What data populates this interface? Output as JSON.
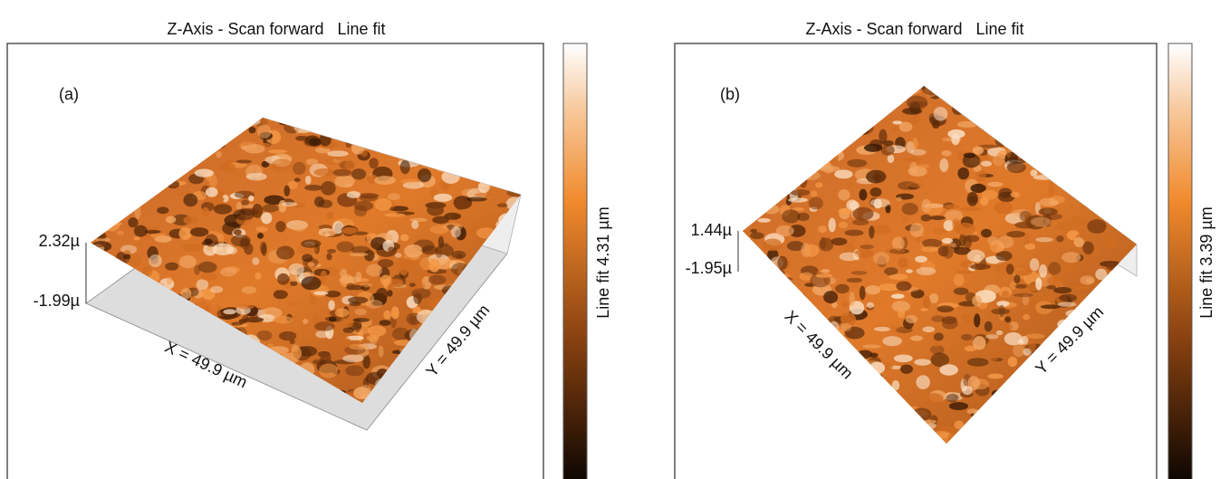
{
  "panels": [
    {
      "title": "Z-Axis - Scan forward   Line fit",
      "label": "(a)",
      "z_max": "2.32µ",
      "z_min": "-1.99µ",
      "x_axis": "X = 49.9 µm",
      "y_axis": "Y = 49.9 µm",
      "colorbar": "Line fit 4.31 µm"
    },
    {
      "title": "Z-Axis - Scan forward   Line fit",
      "label": "(b)",
      "z_max": "1.44µ",
      "z_min": "-1.95µ",
      "x_axis": "X = 49.9 µm",
      "y_axis": "Y = 49.9 µm",
      "colorbar": "Line fit 3.39 µm"
    }
  ]
}
